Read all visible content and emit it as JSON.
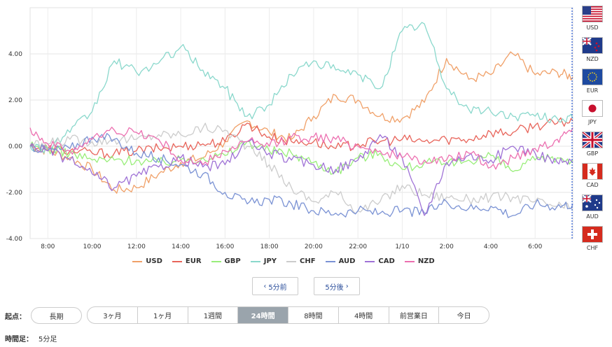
{
  "chart_data": {
    "type": "line",
    "x_ticks": [
      "8:00",
      "10:00",
      "12:00",
      "14:00",
      "16:00",
      "18:00",
      "20:00",
      "22:00",
      "1/10",
      "2:00",
      "4:00",
      "6:00"
    ],
    "y_ticks": [
      "4.00",
      "2.00",
      "0.00",
      "-2.00",
      "-4.00"
    ],
    "ylim": [
      -4,
      6
    ],
    "grid": true,
    "legend_position": "bottom",
    "series": [
      {
        "name": "USD",
        "color": "#f0a068",
        "x": [
          7.2,
          8,
          9,
          10,
          11,
          12,
          13,
          14,
          15,
          16,
          17,
          18,
          19,
          20,
          21,
          22,
          23,
          24,
          25,
          26,
          27,
          28,
          29,
          30,
          31,
          31.7
        ],
        "values": [
          0,
          -0.2,
          -0.5,
          -1.0,
          -1.9,
          -1.8,
          -1.2,
          -0.7,
          -0.5,
          0.2,
          1.1,
          0.6,
          0.3,
          1.3,
          2.2,
          2.0,
          1.3,
          1.2,
          1.9,
          3.8,
          2.9,
          3.1,
          4.0,
          3.1,
          3.2,
          3.0
        ]
      },
      {
        "name": "EUR",
        "color": "#e8645a",
        "x": [
          7.2,
          8,
          9,
          10,
          11,
          12,
          13,
          14,
          15,
          16,
          17,
          18,
          19,
          20,
          21,
          22,
          23,
          24,
          25,
          26,
          27,
          28,
          29,
          30,
          31,
          31.7
        ],
        "values": [
          0,
          -0.1,
          -0.2,
          -0.3,
          -0.3,
          -0.2,
          -0.1,
          0.0,
          0.1,
          0.2,
          1.0,
          0.4,
          0.2,
          0.2,
          -0.1,
          0.1,
          0.2,
          0.3,
          0.2,
          0.3,
          0.3,
          0.6,
          0.6,
          0.9,
          1.0,
          1.1
        ]
      },
      {
        "name": "GBP",
        "color": "#99ee7a",
        "x": [
          7.2,
          8,
          9,
          10,
          11,
          12,
          13,
          14,
          15,
          16,
          17,
          18,
          19,
          20,
          21,
          22,
          23,
          24,
          25,
          26,
          27,
          28,
          29,
          30,
          31,
          31.7
        ],
        "values": [
          0,
          -0.1,
          -0.3,
          -0.6,
          -0.6,
          -0.6,
          -0.7,
          -0.6,
          -0.5,
          -0.4,
          0.2,
          -0.2,
          -0.3,
          -0.7,
          -1.1,
          -0.5,
          -0.3,
          -1.0,
          -0.7,
          -0.8,
          -0.6,
          -0.4,
          -1.1,
          -0.6,
          -0.5,
          -0.6
        ]
      },
      {
        "name": "JPY",
        "color": "#8ad8cc",
        "x": [
          7.2,
          8,
          9,
          10,
          11,
          12,
          13,
          14,
          15,
          16,
          17,
          18,
          19,
          20,
          21,
          22,
          23,
          24,
          25,
          26,
          27,
          28,
          29,
          30,
          31,
          31.7
        ],
        "values": [
          0,
          -0.1,
          0.6,
          1.5,
          3.7,
          3.2,
          3.6,
          4.3,
          3.3,
          2.5,
          1.3,
          1.8,
          3.1,
          3.7,
          3.3,
          3.1,
          2.5,
          5.0,
          5.3,
          2.5,
          1.6,
          1.5,
          1.3,
          1.3,
          1.2,
          1.2
        ]
      },
      {
        "name": "CHF",
        "color": "#cccccc",
        "x": [
          7.2,
          8,
          9,
          10,
          11,
          12,
          13,
          14,
          15,
          16,
          17,
          18,
          19,
          20,
          21,
          22,
          23,
          24,
          25,
          26,
          27,
          28,
          29,
          30,
          31,
          31.7
        ],
        "values": [
          0,
          0.1,
          0.3,
          0.2,
          0.3,
          0.3,
          0.5,
          0.5,
          0.8,
          0.7,
          0.0,
          -0.8,
          -1.8,
          -2.4,
          -2.0,
          -2.8,
          -2.4,
          -1.7,
          -2.1,
          -2.2,
          -2.3,
          -2.2,
          -2.2,
          -2.4,
          -2.6,
          -2.7
        ]
      },
      {
        "name": "AUD",
        "color": "#7a92d4",
        "x": [
          7.2,
          8,
          9,
          10,
          11,
          12,
          13,
          14,
          15,
          16,
          17,
          18,
          19,
          20,
          21,
          22,
          23,
          24,
          25,
          26,
          27,
          28,
          29,
          30,
          31,
          31.7
        ],
        "values": [
          0,
          -0.2,
          -0.1,
          0.4,
          0.3,
          -0.3,
          -0.5,
          -0.8,
          -1.2,
          -2.0,
          -2.5,
          -2.3,
          -2.5,
          -2.8,
          -2.9,
          -2.8,
          -2.9,
          -2.8,
          -2.9,
          -2.4,
          -2.7,
          -2.6,
          -3.0,
          -2.5,
          -2.6,
          -2.5
        ]
      },
      {
        "name": "CAD",
        "color": "#9f72d6",
        "x": [
          7.2,
          8,
          9,
          10,
          11,
          12,
          13,
          14,
          15,
          16,
          17,
          18,
          19,
          20,
          21,
          22,
          23,
          24,
          25,
          26,
          27,
          28,
          29,
          30,
          31,
          31.7
        ],
        "values": [
          0,
          -0.2,
          -0.6,
          -1.2,
          -1.8,
          -1.3,
          -0.9,
          -0.5,
          -0.9,
          -0.8,
          0.2,
          -0.3,
          -0.6,
          -0.8,
          -1.0,
          -0.6,
          0.5,
          -0.5,
          -3.0,
          -0.7,
          -0.4,
          -0.6,
          0.0,
          -0.3,
          -0.7,
          -0.7
        ]
      },
      {
        "name": "NZD",
        "color": "#ec6fb0",
        "x": [
          7.2,
          8,
          9,
          10,
          11,
          12,
          13,
          14,
          15,
          16,
          17,
          18,
          19,
          20,
          21,
          22,
          23,
          24,
          25,
          26,
          27,
          28,
          29,
          30,
          31,
          31.7
        ],
        "values": [
          0.8,
          0.1,
          -0.2,
          0.3,
          0.7,
          0.6,
          0.3,
          -0.6,
          -0.8,
          -0.2,
          0.2,
          0.0,
          0.4,
          0.4,
          0.3,
          0.0,
          -0.2,
          -0.5,
          -0.6,
          -0.6,
          -0.3,
          -0.9,
          -0.5,
          -0.1,
          0.3,
          0.8
        ]
      }
    ]
  },
  "flags": [
    {
      "code": "USD",
      "icon": "us-flag-icon"
    },
    {
      "code": "NZD",
      "icon": "nz-flag-icon"
    },
    {
      "code": "EUR",
      "icon": "eu-flag-icon"
    },
    {
      "code": "JPY",
      "icon": "jp-flag-icon"
    },
    {
      "code": "GBP",
      "icon": "gb-flag-icon"
    },
    {
      "code": "CAD",
      "icon": "ca-flag-icon"
    },
    {
      "code": "AUD",
      "icon": "au-flag-icon"
    },
    {
      "code": "CHF",
      "icon": "ch-flag-icon"
    }
  ],
  "nav": {
    "prev_label": "5分前",
    "next_label": "5分後",
    "prev_icon": "‹",
    "next_icon": "›"
  },
  "period": {
    "label": "起点：",
    "long_label": "長期",
    "tabs": [
      "3ヶ月",
      "1ヶ月",
      "1週間",
      "24時間",
      "8時間",
      "4時間",
      "前営業日",
      "今日"
    ],
    "active_index": 3
  },
  "timeframe": {
    "label": "時間足：",
    "value": "5分足"
  }
}
